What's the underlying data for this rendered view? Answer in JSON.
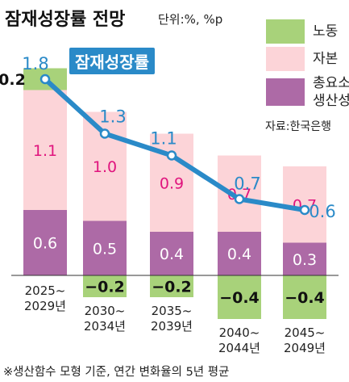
{
  "title": "잠재성장률 전망",
  "unit_label": "단위:%, %p",
  "source": "자료:한국은행",
  "footnote": "※생산함수 모형 기준, 연간 변화율의 5년 평균",
  "colors": {
    "labor": "#a8d27a",
    "capital": "#fcd4d8",
    "tfp": "#ad6aa6",
    "line": "#2a8ac8",
    "capital_text": "#e0157e",
    "total_text": "#2a8ac8"
  },
  "legend": [
    {
      "key": "labor",
      "label": "노동"
    },
    {
      "key": "capital",
      "label": "자본"
    },
    {
      "key": "tfp",
      "label": "총요소\n생산성"
    }
  ],
  "chart_data": {
    "type": "bar",
    "stacked": true,
    "categories": [
      "2025~\n2029년",
      "2030~\n2034년",
      "2035~\n2039년",
      "2040~\n2044년",
      "2045~\n2049년"
    ],
    "series": [
      {
        "name": "총요소 생산성",
        "key": "tfp",
        "values": [
          0.6,
          0.5,
          0.4,
          0.4,
          0.3
        ]
      },
      {
        "name": "자본",
        "key": "capital",
        "values": [
          1.1,
          1.0,
          0.9,
          0.7,
          0.7
        ]
      },
      {
        "name": "노동",
        "key": "labor",
        "values": [
          0.2,
          -0.2,
          -0.2,
          -0.4,
          -0.4
        ]
      }
    ],
    "line": {
      "name": "잠재성장률",
      "values": [
        1.8,
        1.3,
        1.1,
        0.7,
        0.6
      ]
    },
    "ylim": [
      -0.6,
      2.0
    ],
    "grid": false,
    "legend_position": "top-right"
  }
}
